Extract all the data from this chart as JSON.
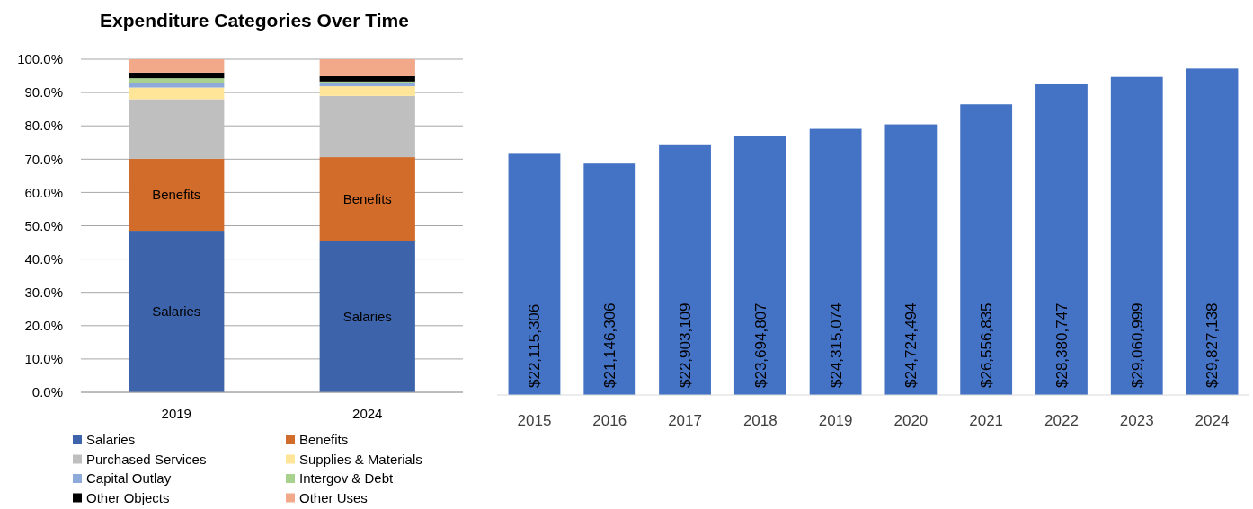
{
  "chart_data": [
    {
      "type": "bar",
      "title": "Expenditure Categories Over Time",
      "categories": [
        "2019",
        "2024"
      ],
      "stacked": true,
      "ylim": [
        0,
        100
      ],
      "yticks": [
        {
          "value": 0,
          "label": "0.0%"
        },
        {
          "value": 10,
          "label": "10.0%"
        },
        {
          "value": 20,
          "label": "20.0%"
        },
        {
          "value": 30,
          "label": "30.0%"
        },
        {
          "value": 40,
          "label": "40.0%"
        },
        {
          "value": 50,
          "label": "50.0%"
        },
        {
          "value": 60,
          "label": "60.0%"
        },
        {
          "value": 70,
          "label": "70.0%"
        },
        {
          "value": 80,
          "label": "80.0%"
        },
        {
          "value": 90,
          "label": "90.0%"
        },
        {
          "value": 100,
          "label": "100.0%"
        }
      ],
      "grid": "y",
      "legend": "bottom",
      "series": [
        {
          "name": "Salaries",
          "color": "#3d64ab",
          "values": [
            48.5,
            45.5
          ]
        },
        {
          "name": "Benefits",
          "color": "#d26c2a",
          "values": [
            21.6,
            25.1
          ]
        },
        {
          "name": "Purchased Services",
          "color": "#bfbfbf",
          "values": [
            17.9,
            18.4
          ]
        },
        {
          "name": "Supplies & Materials",
          "color": "#ffe597",
          "values": [
            3.5,
            2.9
          ]
        },
        {
          "name": "Capital Outlay",
          "color": "#8eaadb",
          "values": [
            1.3,
            0.9
          ]
        },
        {
          "name": "Intergov & Debt",
          "color": "#a9d18e",
          "values": [
            1.5,
            0.5
          ]
        },
        {
          "name": "Other Objects",
          "color": "#000000",
          "values": [
            1.7,
            1.6
          ]
        },
        {
          "name": "Other Uses",
          "color": "#f1a98a",
          "values": [
            4.0,
            5.1
          ]
        }
      ]
    },
    {
      "type": "bar",
      "categories": [
        "2015",
        "2016",
        "2017",
        "2018",
        "2019",
        "2020",
        "2021",
        "2022",
        "2023",
        "2024"
      ],
      "color": "#4472c4",
      "values": [
        22115306,
        21146306,
        22903109,
        23694807,
        24315074,
        24724494,
        26556835,
        28380747,
        29060999,
        29827138
      ],
      "value_labels": [
        "$22,115,306",
        "$21,146,306",
        "$22,903,109",
        "$23,694,807",
        "$24,315,074",
        "$24,724,494",
        "$26,556,835",
        "$28,380,747",
        "$29,060,999",
        "$29,827,138"
      ]
    }
  ]
}
